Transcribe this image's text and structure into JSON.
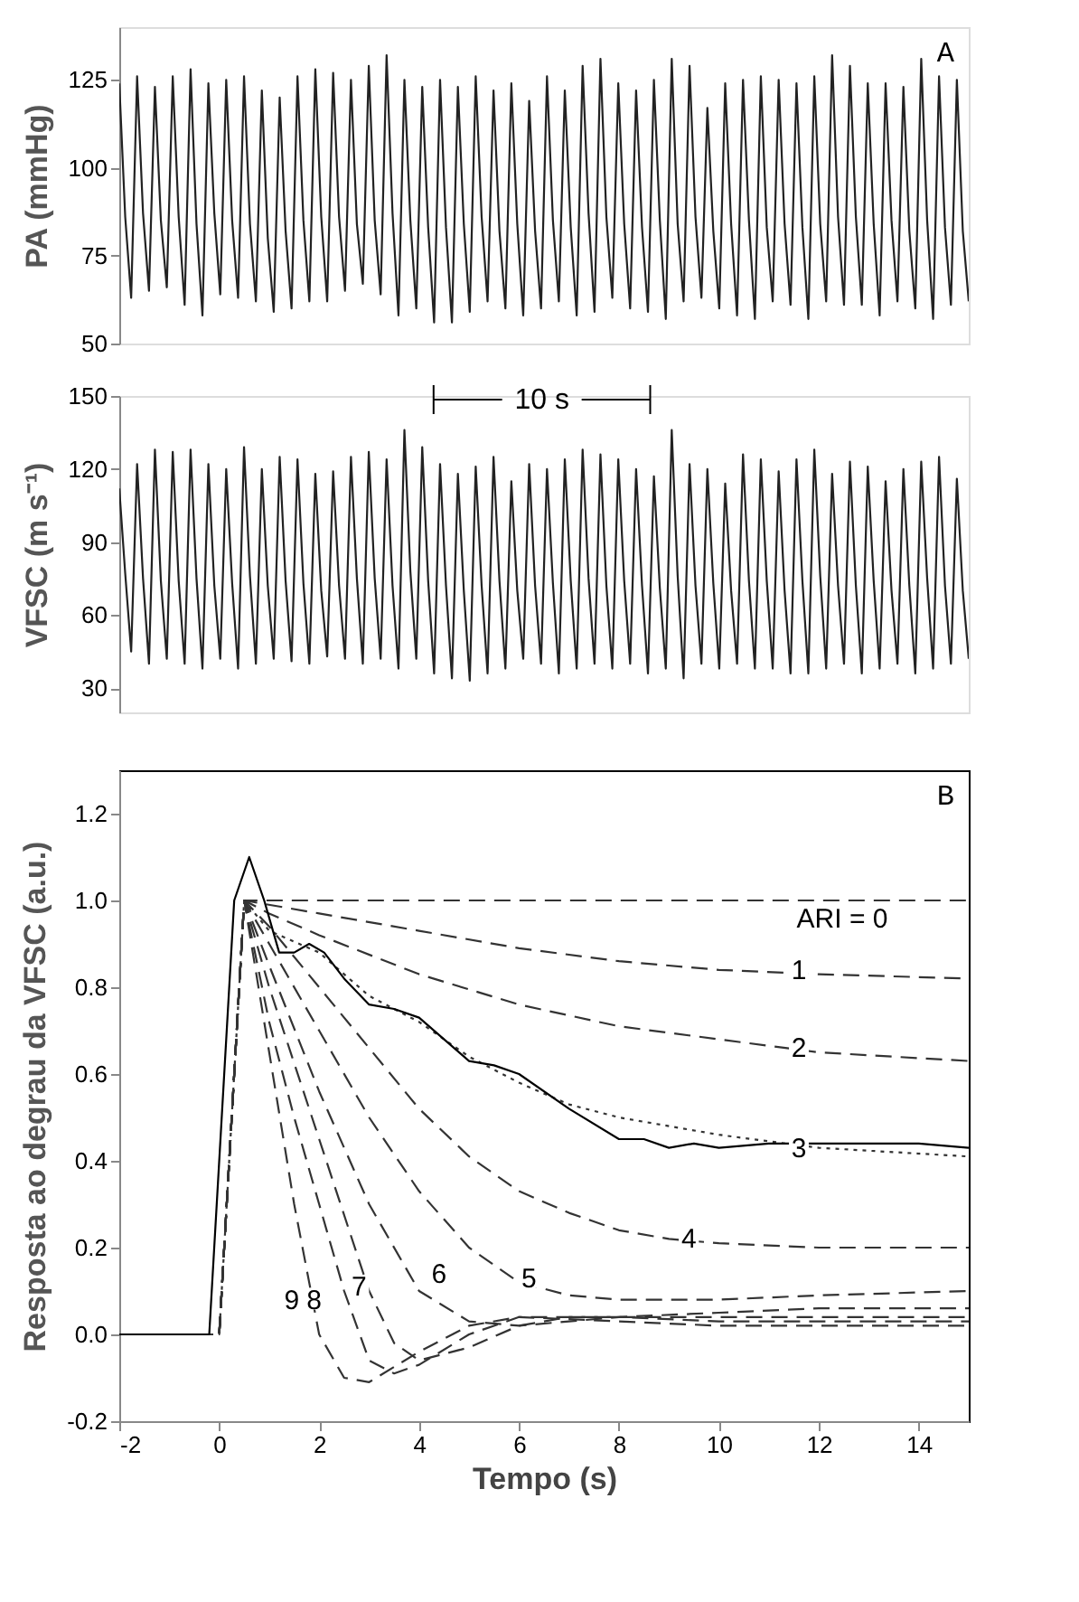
{
  "chart_data": [
    {
      "type": "line",
      "ylabel": "PA (mmHg)",
      "ylim": [
        50,
        140
      ],
      "yticks": [
        50,
        75,
        100,
        125
      ],
      "tick_labels": "y",
      "grid": false,
      "annotations": [
        "A"
      ],
      "categories": [
        null,
        null,
        null,
        null,
        null,
        null,
        null,
        null,
        null,
        null,
        null,
        null,
        null,
        null,
        null,
        null,
        null,
        null,
        null,
        null,
        null,
        null,
        null,
        null,
        null,
        null,
        null,
        null,
        null,
        null,
        null,
        null,
        null,
        null,
        null,
        null,
        null,
        null,
        null,
        null,
        null,
        null,
        null,
        null,
        null,
        null,
        null,
        null,
        null,
        null,
        null,
        null,
        null,
        null,
        null,
        null,
        null,
        null,
        null,
        null,
        null,
        null,
        null,
        null,
        null,
        null,
        null,
        null,
        null,
        null,
        null,
        null,
        null,
        null,
        null,
        null,
        null,
        null,
        null,
        null,
        null,
        null,
        null,
        null,
        null,
        null,
        null,
        null,
        null,
        null,
        null,
        null,
        null,
        null,
        null,
        null,
        null,
        null,
        null,
        null,
        null,
        null,
        null,
        null,
        null,
        null,
        null,
        null,
        null,
        null,
        null,
        null,
        null,
        null,
        null,
        null,
        null,
        null,
        null,
        null,
        null,
        null,
        null,
        null,
        null,
        null,
        null,
        null,
        null,
        null,
        null,
        null,
        null,
        null,
        null,
        null,
        null,
        null,
        null,
        null,
        null,
        null,
        null,
        null
      ],
      "series": [
        {
          "color": "#222222",
          "line_style": "solid",
          "values": [
            124,
            86,
            63,
            126,
            87,
            65,
            123,
            85,
            66,
            126,
            86,
            61,
            128,
            84,
            58,
            124,
            87,
            64,
            125,
            85,
            63,
            126,
            84,
            62,
            122,
            80,
            59,
            120,
            82,
            60,
            126,
            85,
            62,
            128,
            86,
            62,
            127,
            86,
            65,
            125,
            84,
            67,
            129,
            85,
            64,
            132,
            87,
            58,
            125,
            85,
            60,
            123,
            83,
            56,
            125,
            83,
            56,
            123,
            84,
            59,
            126,
            86,
            62,
            122,
            82,
            60,
            124,
            84,
            58,
            119,
            82,
            60,
            126,
            85,
            62,
            122,
            83,
            58,
            129,
            87,
            59,
            131,
            86,
            63,
            124,
            84,
            60,
            122,
            83,
            59,
            125,
            85,
            57,
            131,
            84,
            62,
            129,
            86,
            63,
            117,
            82,
            60,
            124,
            84,
            58,
            125,
            85,
            57,
            126,
            83,
            62,
            125,
            84,
            61,
            124,
            83,
            57,
            126,
            84,
            62,
            132,
            86,
            61,
            129,
            86,
            61,
            124,
            84,
            58,
            124,
            85,
            62,
            123,
            82,
            60,
            131,
            85,
            57,
            126,
            83,
            61,
            125,
            82,
            62
          ]
        }
      ]
    },
    {
      "type": "line",
      "ylabel": "VFSC (m s⁻¹)",
      "ylim": [
        20,
        150
      ],
      "yticks": [
        30,
        60,
        90,
        120,
        150
      ],
      "tick_labels": "y",
      "grid": false,
      "annotations": [
        "10 s"
      ],
      "categories": [
        null,
        null,
        null,
        null,
        null,
        null,
        null,
        null,
        null,
        null,
        null,
        null,
        null,
        null,
        null,
        null,
        null,
        null,
        null,
        null,
        null,
        null,
        null,
        null,
        null,
        null,
        null,
        null,
        null,
        null,
        null,
        null,
        null,
        null,
        null,
        null,
        null,
        null,
        null,
        null,
        null,
        null,
        null,
        null,
        null,
        null,
        null,
        null,
        null,
        null,
        null,
        null,
        null,
        null,
        null,
        null,
        null,
        null,
        null,
        null,
        null,
        null,
        null,
        null,
        null,
        null,
        null,
        null,
        null,
        null,
        null,
        null,
        null,
        null,
        null,
        null,
        null,
        null,
        null,
        null,
        null,
        null,
        null,
        null,
        null,
        null,
        null,
        null,
        null,
        null,
        null,
        null,
        null,
        null,
        null,
        null,
        null,
        null,
        null,
        null,
        null,
        null,
        null,
        null,
        null,
        null,
        null,
        null,
        null,
        null,
        null,
        null,
        null,
        null,
        null,
        null,
        null,
        null,
        null,
        null,
        null,
        null,
        null,
        null,
        null,
        null,
        null,
        null,
        null,
        null,
        null,
        null,
        null,
        null,
        null,
        null,
        null,
        null,
        null,
        null,
        null,
        null,
        null,
        null
      ],
      "series": [
        {
          "color": "#222222",
          "line_style": "solid",
          "values": [
            112,
            77,
            45,
            122,
            75,
            40,
            128,
            74,
            42,
            127,
            74,
            40,
            128,
            75,
            38,
            122,
            72,
            42,
            120,
            73,
            38,
            129,
            76,
            40,
            120,
            72,
            42,
            125,
            74,
            41,
            124,
            73,
            40,
            118,
            70,
            43,
            119,
            72,
            42,
            125,
            75,
            40,
            127,
            75,
            42,
            124,
            72,
            38,
            136,
            78,
            42,
            129,
            74,
            36,
            122,
            72,
            34,
            118,
            70,
            33,
            121,
            72,
            36,
            125,
            74,
            38,
            115,
            70,
            42,
            122,
            72,
            40,
            120,
            73,
            36,
            124,
            74,
            38,
            128,
            75,
            40,
            126,
            72,
            38,
            124,
            74,
            40,
            120,
            72,
            36,
            117,
            71,
            38,
            136,
            76,
            34,
            122,
            72,
            40,
            120,
            73,
            38,
            114,
            70,
            40,
            126,
            74,
            38,
            124,
            74,
            38,
            119,
            70,
            36,
            124,
            74,
            36,
            128,
            76,
            38,
            118,
            72,
            40,
            123,
            72,
            36,
            121,
            74,
            38,
            115,
            70,
            40,
            120,
            72,
            36,
            123,
            75,
            38,
            125,
            72,
            40,
            116,
            70,
            42
          ]
        }
      ]
    },
    {
      "type": "line",
      "xlabel": "Tempo (s)",
      "ylabel": "Resposta ao degrau da VFSC (a.u.)",
      "xlim": [
        -2,
        15
      ],
      "xticks": [
        -2,
        0,
        2,
        4,
        6,
        8,
        10,
        12,
        14
      ],
      "ylim": [
        -0.2,
        1.3
      ],
      "yticks": [
        -0.2,
        {
          "value": 0,
          "label": "0.0"
        },
        0.2,
        0.4,
        0.6,
        0.8,
        {
          "value": 1,
          "label": "1.0"
        },
        1.2
      ],
      "grid": false,
      "annotations": [
        "B",
        "ARI = 0",
        {
          "text": "1",
          "x": 11.6,
          "y": 0.84
        },
        {
          "text": "2",
          "x": 11.6,
          "y": 0.66
        },
        {
          "text": "3",
          "x": 11.6,
          "y": 0.43
        },
        {
          "text": "4",
          "x": 9.4,
          "y": 0.22
        },
        {
          "text": "5",
          "x": 6.2,
          "y": 0.13
        },
        {
          "text": "6",
          "x": 4.4,
          "y": 0.14
        },
        {
          "text": "7",
          "x": 2.8,
          "y": 0.11
        },
        {
          "text": "8",
          "x": 1.9,
          "y": 0.08
        },
        {
          "text": "9",
          "x": 1.45,
          "y": 0.08
        }
      ],
      "series": [
        {
          "color": "#333333",
          "line_style": "dashed",
          "x": [
            -2,
            0,
            0.5,
            15
          ],
          "values": [
            0,
            0,
            1,
            1
          ]
        },
        {
          "color": "#333333",
          "line_style": "dashed",
          "x": [
            -2,
            0,
            0.5,
            2,
            4,
            6,
            8,
            10,
            12,
            15
          ],
          "values": [
            0,
            0,
            1,
            0.97,
            0.93,
            0.89,
            0.86,
            0.84,
            0.83,
            0.82
          ]
        },
        {
          "color": "#333333",
          "line_style": "dashed",
          "x": [
            -2,
            0,
            0.5,
            1,
            2,
            4,
            6,
            8,
            10,
            12,
            15
          ],
          "values": [
            0,
            0,
            1,
            0.97,
            0.92,
            0.83,
            0.76,
            0.71,
            0.68,
            0.65,
            0.63
          ]
        },
        {
          "color": "#333333",
          "line_style": "dotted",
          "x": [
            -2,
            0,
            0.5,
            1,
            2,
            3,
            4,
            5,
            6,
            7,
            8,
            10,
            12,
            15
          ],
          "values": [
            0,
            0,
            1,
            0.93,
            0.88,
            0.78,
            0.72,
            0.64,
            0.58,
            0.53,
            0.5,
            0.46,
            0.43,
            0.41
          ]
        },
        {
          "color": "#333333",
          "line_style": "dashed",
          "x": [
            -2,
            0,
            0.5,
            1,
            2,
            3,
            4,
            5,
            6,
            7,
            8,
            9,
            10,
            12,
            15
          ],
          "values": [
            0,
            0,
            1,
            0.94,
            0.8,
            0.66,
            0.52,
            0.41,
            0.33,
            0.28,
            0.24,
            0.22,
            0.21,
            0.2,
            0.2
          ]
        },
        {
          "color": "#333333",
          "line_style": "dashed",
          "x": [
            -2,
            0,
            0.5,
            1,
            2,
            3,
            4,
            5,
            6,
            7,
            8,
            10,
            12,
            15
          ],
          "values": [
            0,
            0,
            1,
            0.9,
            0.7,
            0.5,
            0.33,
            0.2,
            0.12,
            0.09,
            0.08,
            0.08,
            0.09,
            0.1
          ]
        },
        {
          "color": "#333333",
          "line_style": "dashed",
          "x": [
            -2,
            0,
            0.5,
            1,
            2,
            3,
            4,
            5,
            6,
            7,
            8,
            10,
            12,
            15
          ],
          "values": [
            0,
            0,
            1,
            0.85,
            0.56,
            0.3,
            0.1,
            0.03,
            0.02,
            0.03,
            0.04,
            0.05,
            0.06,
            0.06
          ]
        },
        {
          "color": "#333333",
          "line_style": "dashed",
          "x": [
            -2,
            0,
            0.5,
            1,
            2,
            3,
            3.5,
            4,
            5,
            6,
            7,
            8,
            10,
            12,
            15
          ],
          "values": [
            0,
            0,
            1,
            0.8,
            0.45,
            0.1,
            -0.02,
            -0.06,
            -0.03,
            0.02,
            0.04,
            0.04,
            0.04,
            0.04,
            0.04
          ]
        },
        {
          "color": "#333333",
          "line_style": "dashed",
          "x": [
            -2,
            0,
            0.5,
            1,
            1.5,
            2,
            2.5,
            3,
            3.5,
            4,
            5,
            6,
            8,
            10,
            15
          ],
          "values": [
            0,
            0,
            1,
            0.72,
            0.5,
            0.3,
            0.1,
            -0.06,
            -0.09,
            -0.07,
            0.0,
            0.04,
            0.04,
            0.03,
            0.03
          ]
        },
        {
          "color": "#333333",
          "line_style": "dashed",
          "x": [
            -2,
            0,
            0.5,
            1,
            1.5,
            2,
            2.5,
            3,
            4,
            5,
            6,
            8,
            10,
            15
          ],
          "values": [
            0,
            0,
            1,
            0.65,
            0.3,
            0.0,
            -0.1,
            -0.11,
            -0.04,
            0.02,
            0.04,
            0.03,
            0.02,
            0.02
          ]
        },
        {
          "color": "#000000",
          "line_style": "solid",
          "x": [
            -2,
            -0.2,
            0.3,
            0.6,
            0.9,
            1.2,
            1.5,
            1.8,
            2.1,
            2.5,
            3,
            3.5,
            4,
            4.5,
            5,
            5.5,
            6,
            7,
            8,
            8.5,
            9,
            9.5,
            10,
            11,
            12,
            14,
            15
          ],
          "values": [
            0,
            0,
            1.0,
            1.1,
            1.0,
            0.88,
            0.88,
            0.9,
            0.88,
            0.82,
            0.76,
            0.75,
            0.73,
            0.68,
            0.63,
            0.62,
            0.6,
            0.52,
            0.45,
            0.45,
            0.43,
            0.44,
            0.43,
            0.44,
            0.44,
            0.44,
            0.43
          ]
        }
      ]
    }
  ]
}
